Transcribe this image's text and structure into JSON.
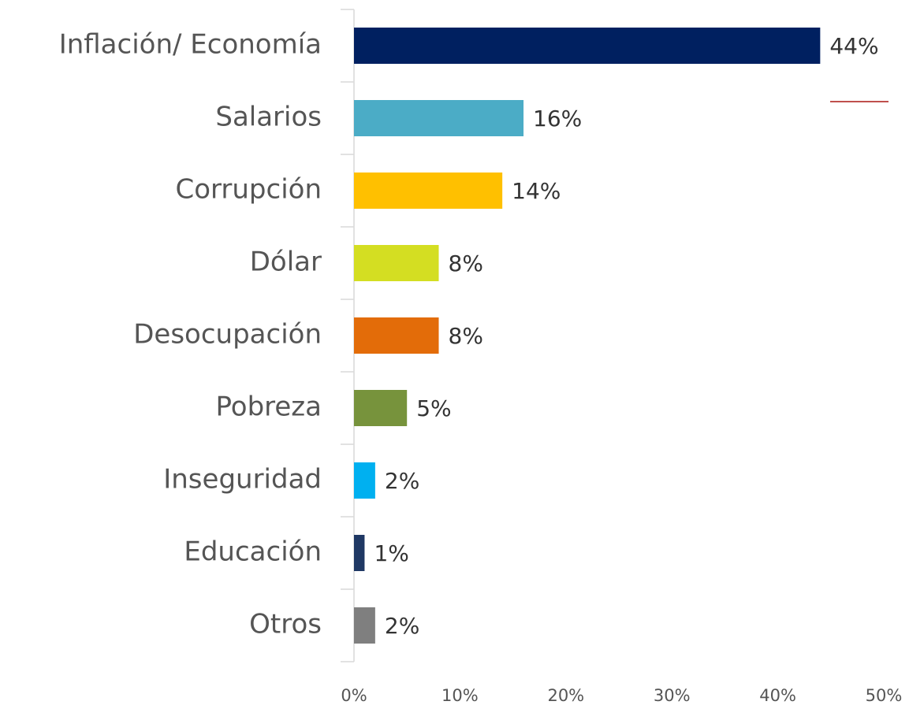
{
  "chart_data": {
    "type": "barh",
    "categories": [
      "Inflación/ Economía",
      "Salarios",
      "Corrupción",
      "Dólar",
      "Desocupación",
      "Pobreza",
      "Inseguridad",
      "Educación",
      "Otros"
    ],
    "values": [
      44,
      16,
      14,
      8,
      8,
      5,
      2,
      1,
      2
    ],
    "value_labels": [
      "44%",
      "16%",
      "14%",
      "8%",
      "8%",
      "5%",
      "2%",
      "1%",
      "2%"
    ],
    "colors": [
      "#002060",
      "#4bacc6",
      "#ffc000",
      "#d4de22",
      "#e36c09",
      "#77933c",
      "#00b0f0",
      "#1f3864",
      "#7f7f7f"
    ],
    "xlim": [
      0,
      50
    ],
    "xticks": [
      {
        "value": 0,
        "label": "0%"
      },
      {
        "value": 10,
        "label": "10%"
      },
      {
        "value": 20,
        "label": "20%"
      },
      {
        "value": 30,
        "label": "30%"
      },
      {
        "value": 40,
        "label": "40%"
      },
      {
        "value": 50,
        "label": "50%"
      }
    ]
  }
}
